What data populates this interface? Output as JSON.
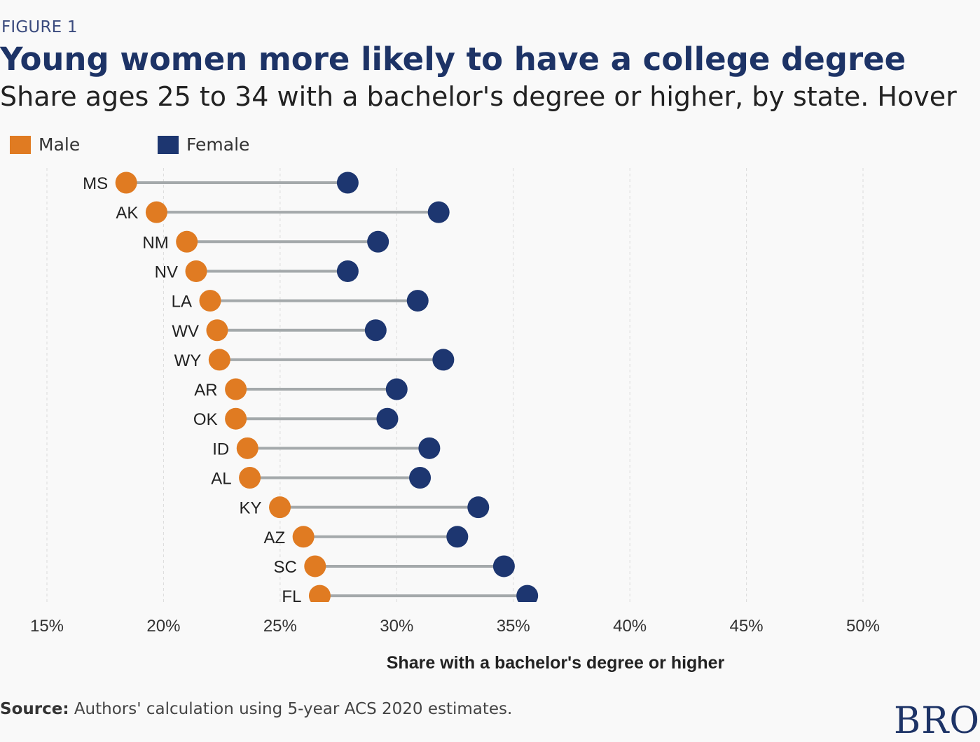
{
  "figure_label": "FIGURE 1",
  "title": "Young women more likely to have a college degree",
  "subtitle": "Share ages 25 to 34 with a bachelor's degree or higher, by state. Hover",
  "source_label": "Source:",
  "source_text": "Authors' calculation using 5-year ACS 2020 estimates.",
  "brand": "BRO",
  "colors": {
    "male": "#e07b22",
    "female": "#1d3670",
    "connector": "#a4a9ab",
    "grid": "#dcdcdc"
  },
  "chart_data": {
    "type": "dumbbell",
    "title": "Young women more likely to have a college degree",
    "subtitle": "Share ages 25 to 34 with a bachelor's degree or higher, by state. Hover",
    "xlabel": "Share with a bachelor's degree or higher",
    "ylabel": "",
    "xlim": [
      15,
      50
    ],
    "xticks": [
      15,
      20,
      25,
      30,
      35,
      40,
      45,
      50
    ],
    "xtick_labels": [
      "15%",
      "20%",
      "25%",
      "30%",
      "35%",
      "40%",
      "45%",
      "50%"
    ],
    "grid": true,
    "legend_position": "top-left",
    "categories": [
      "MS",
      "AK",
      "NM",
      "NV",
      "LA",
      "WV",
      "WY",
      "AR",
      "OK",
      "ID",
      "AL",
      "KY",
      "AZ",
      "SC",
      "FL"
    ],
    "series": [
      {
        "name": "Male",
        "color": "#e07b22",
        "values": [
          18.4,
          19.7,
          21.0,
          21.4,
          22.0,
          22.3,
          22.4,
          23.1,
          23.1,
          23.6,
          23.7,
          24.99,
          26.0,
          26.5,
          26.7
        ]
      },
      {
        "name": "Female",
        "color": "#1d3670",
        "values": [
          27.9,
          31.8,
          29.2,
          27.9,
          30.9,
          29.1,
          32.0,
          30.0,
          29.6,
          31.4,
          31.0,
          33.5,
          32.6,
          34.6,
          35.6
        ]
      }
    ]
  }
}
